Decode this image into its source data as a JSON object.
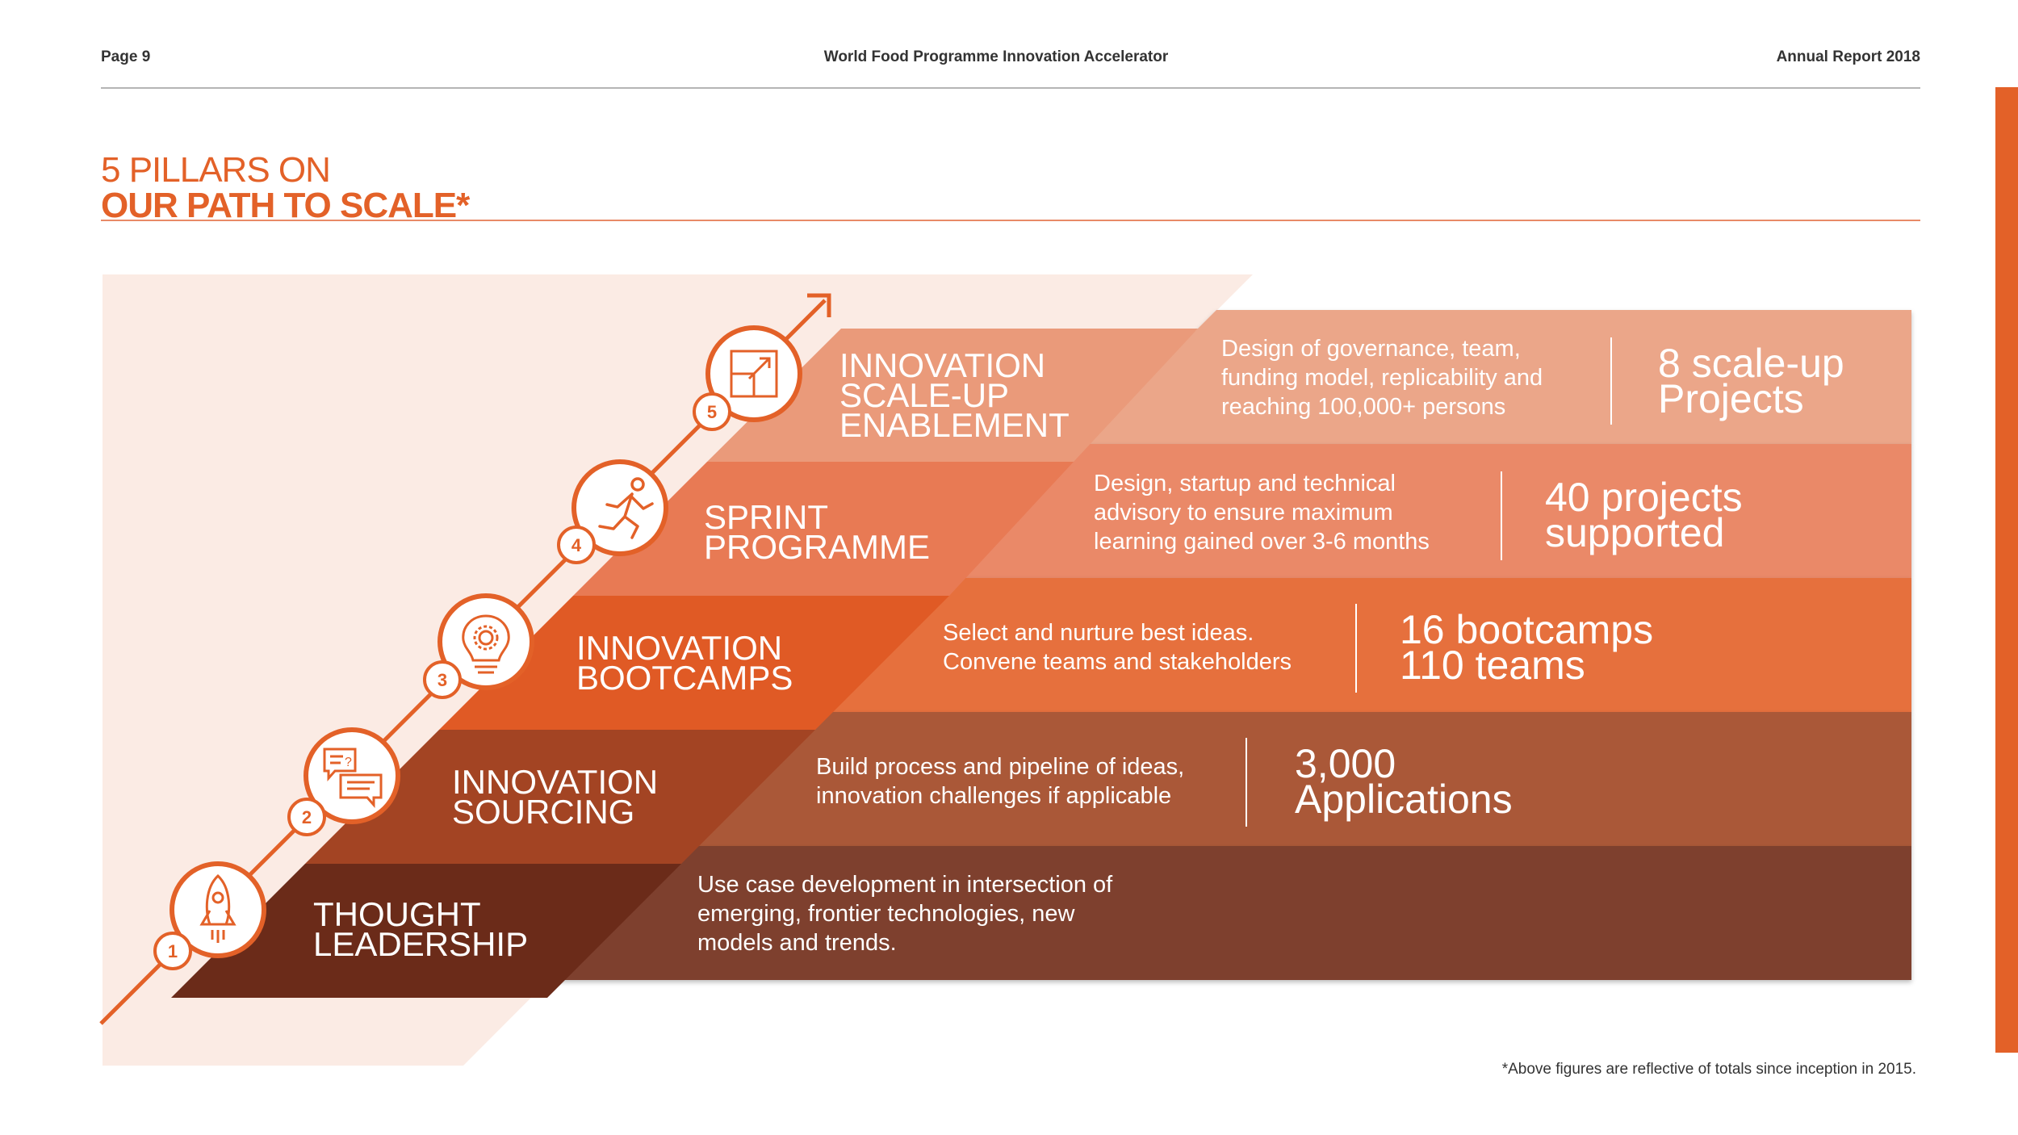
{
  "header": {
    "page": "Page 9",
    "center": "World Food Programme Innovation Accelerator",
    "right": "Annual Report 2018"
  },
  "title": {
    "line1": "5 PILLARS ON",
    "line2": "OUR PATH TO SCALE*"
  },
  "pillars": [
    {
      "number": "1",
      "name_line1": "THOUGHT",
      "name_line2": "LEADERSHIP",
      "icon": "rocket-icon",
      "color": "#6b2b19",
      "band_color": "#7e412e",
      "description": [
        "Use case development in intersection of",
        "emerging, frontier technologies, new",
        "models and trends."
      ],
      "stat": []
    },
    {
      "number": "2",
      "name_line1": "INNOVATION",
      "name_line2": "SOURCING",
      "icon": "chat-bubbles-icon",
      "color": "#a34423",
      "band_color": "#aa5838",
      "description": [
        "Build process and pipeline of ideas,",
        "innovation challenges if applicable"
      ],
      "stat": [
        "3,000",
        "Applications"
      ]
    },
    {
      "number": "3",
      "name_line1": "INNOVATION",
      "name_line2": "BOOTCAMPS",
      "icon": "lightbulb-gear-icon",
      "color": "#e05a25",
      "band_color": "#e66f3d",
      "description": [
        "Select and nurture best ideas.",
        "Convene teams and stakeholders"
      ],
      "stat": [
        "16 bootcamps",
        "110 teams"
      ]
    },
    {
      "number": "4",
      "name_line1": "SPRINT",
      "name_line2": "PROGRAMME",
      "icon": "runner-icon",
      "color": "#e87a54",
      "band_color": "#ea8967",
      "description": [
        "Design, startup and technical",
        "advisory to ensure maximum",
        "learning  gained over 3-6 months"
      ],
      "stat": [
        "40 projects",
        "supported"
      ]
    },
    {
      "number": "5",
      "name_line1": "INNOVATION",
      "name_line2": "SCALE-UP",
      "name_line3": "ENABLEMENT",
      "icon": "scale-up-arrow-icon",
      "color": "#ea9a7a",
      "band_color": "#eba689",
      "description": [
        "Design of governance, team,",
        "funding model, replicability and",
        "reaching 100,000+ persons"
      ],
      "stat": [
        "8 scale-up",
        "Projects"
      ]
    }
  ],
  "colors": {
    "accent": "#e36128",
    "background_tint": "#fbebe4"
  },
  "footnote": "*Above figures are reflective of totals since inception in 2015."
}
